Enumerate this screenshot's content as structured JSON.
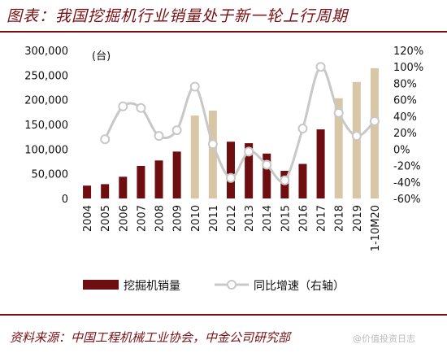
{
  "title": "图表：我国挖掘机行业销量处于新一轮上行周期",
  "source": "资料来源：中国工程机械工业协会，中金公司研究部",
  "watermark": "@价值投资日志",
  "colors": {
    "accent": "#7a1014",
    "bar_dark": "#6e0e10",
    "bar_light": "#d8c7a6",
    "line": "#c8c8c8"
  },
  "chart_data": {
    "type": "bar",
    "unit_label": "(台)",
    "categories": [
      "2004",
      "2005",
      "2006",
      "2007",
      "2008",
      "2009",
      "2010",
      "2011",
      "2012",
      "2013",
      "2014",
      "2015",
      "2016",
      "2017",
      "2018",
      "2019",
      "1-10M20"
    ],
    "series": [
      {
        "name": "挖掘机销量",
        "axis": "left",
        "values": [
          26000,
          29000,
          44000,
          66000,
          77000,
          95000,
          168000,
          178000,
          115000,
          112000,
          91000,
          56000,
          70000,
          140000,
          203000,
          236000,
          264000
        ],
        "highlight": [
          "dark",
          "dark",
          "dark",
          "dark",
          "dark",
          "dark",
          "light",
          "light",
          "dark",
          "dark",
          "dark",
          "dark",
          "dark",
          "dark",
          "light",
          "light",
          "light"
        ]
      },
      {
        "name": "同比增速（右轴）",
        "axis": "right",
        "type": "line",
        "values": [
          null,
          12,
          52,
          50,
          16,
          23,
          76,
          6,
          -35,
          -3,
          -19,
          -38,
          25,
          100,
          44,
          16,
          34
        ]
      }
    ],
    "ylim_left": [
      0,
      300000
    ],
    "yticks_left": [
      "0",
      "50,000",
      "100,000",
      "150,000",
      "200,000",
      "250,000",
      "300,000"
    ],
    "ylim_right": [
      -60,
      120
    ],
    "yticks_right": [
      "-60%",
      "-40%",
      "-20%",
      "0%",
      "20%",
      "40%",
      "60%",
      "80%",
      "100%",
      "120%"
    ],
    "legend": [
      "挖掘机销量",
      "同比增速（右轴）"
    ],
    "legend_position": "bottom",
    "grid": false
  }
}
